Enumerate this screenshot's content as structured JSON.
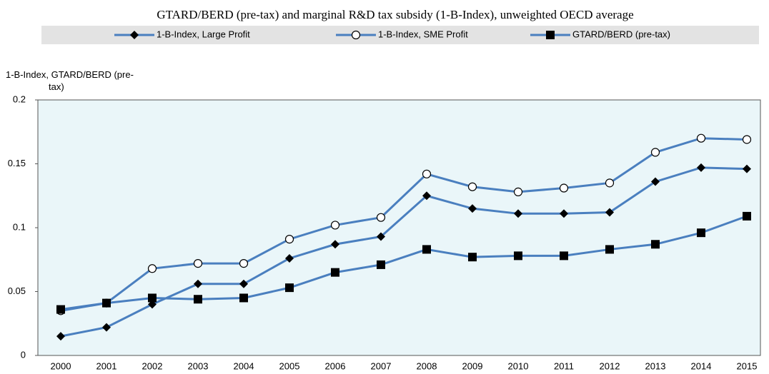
{
  "chart_data": {
    "type": "line",
    "title": "GTARD/BERD (pre-tax) and marginal R&D tax subsidy (1-B-Index), unweighted OECD average",
    "ylabel": "1-B-Index, GTARD/BERD (pre-tax)",
    "categories": [
      "2000",
      "2001",
      "2002",
      "2003",
      "2004",
      "2005",
      "2006",
      "2007",
      "2008",
      "2009",
      "2010",
      "2011",
      "2012",
      "2013",
      "2014",
      "2015"
    ],
    "ylim": [
      0,
      0.2
    ],
    "yticks": [
      0,
      0.05,
      0.1,
      0.15,
      0.2
    ],
    "grid": false,
    "legend": "top",
    "series": [
      {
        "name": "1-B-Index, Large Profit",
        "color": "#4a7fbf",
        "marker": "diamond",
        "values": [
          0.015,
          0.022,
          0.04,
          0.056,
          0.056,
          0.076,
          0.087,
          0.093,
          0.125,
          0.115,
          0.111,
          0.111,
          0.112,
          0.136,
          0.147,
          0.146
        ]
      },
      {
        "name": "1-B-Index, SME Profit",
        "color": "#4a7fbf",
        "marker": "circle",
        "values": [
          0.035,
          0.041,
          0.068,
          0.072,
          0.072,
          0.091,
          0.102,
          0.108,
          0.142,
          0.132,
          0.128,
          0.131,
          0.135,
          0.159,
          0.17,
          0.169
        ]
      },
      {
        "name": "GTARD/BERD (pre-tax)",
        "color": "#4a7fbf",
        "marker": "square",
        "values": [
          0.036,
          0.041,
          0.045,
          0.044,
          0.045,
          0.053,
          0.065,
          0.071,
          0.083,
          0.077,
          0.078,
          0.078,
          0.083,
          0.087,
          0.096,
          0.109
        ]
      }
    ]
  }
}
